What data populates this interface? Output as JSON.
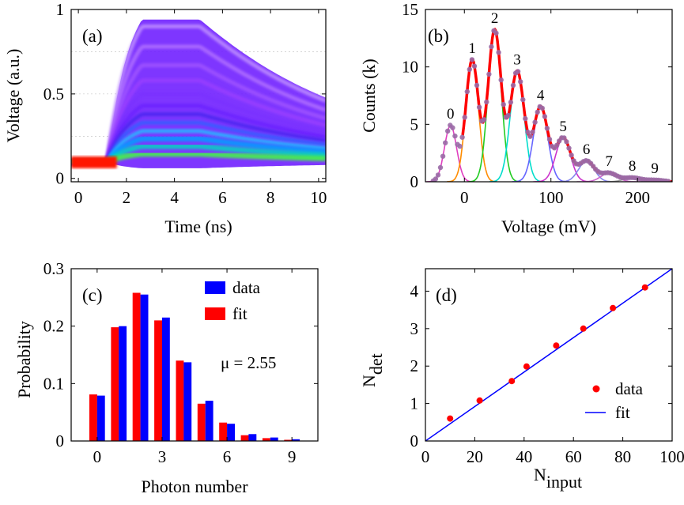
{
  "colors": {
    "blue": "#0000ff",
    "red": "#ff0000",
    "purple_point": "#9a6aa6"
  },
  "panels": {
    "a": {
      "label": "(a)",
      "xlabel": "Time (ns)",
      "ylabel": "Voltage (a.u.)",
      "xticks": [
        "0",
        "2",
        "4",
        "6",
        "8",
        "10"
      ],
      "yticks": [
        "0",
        "0.5",
        "1"
      ]
    },
    "b": {
      "label": "(b)",
      "xlabel": "Voltage (mV)",
      "ylabel": "Counts (k)",
      "xticks": [
        "0",
        "100",
        "200"
      ],
      "yticks": [
        "0",
        "5",
        "10",
        "15"
      ],
      "peak_labels": [
        "0",
        "1",
        "2",
        "3",
        "4",
        "5",
        "6",
        "7",
        "8",
        "9"
      ]
    },
    "c": {
      "label": "(c)",
      "xlabel": "Photon number",
      "ylabel": "Probability",
      "xticks": [
        "0",
        "3",
        "6",
        "9"
      ],
      "yticks": [
        "0",
        "0.1",
        "0.2",
        "0.3"
      ],
      "legend": [
        "data",
        "fit"
      ],
      "annotation": "μ = 2.55"
    },
    "d": {
      "label": "(d)",
      "xlabel_main": "N",
      "xlabel_sub": "input",
      "ylabel_main": "N",
      "ylabel_sub": "det",
      "xticks": [
        "0",
        "20",
        "40",
        "60",
        "80",
        "100"
      ],
      "yticks": [
        "0",
        "1",
        "2",
        "3",
        "4"
      ],
      "legend": [
        "data",
        "fit"
      ]
    }
  },
  "chart_data": [
    {
      "type": "heatmap",
      "panel": "a",
      "description_series": "persistence density of voltage traces vs time",
      "xlim": [
        -0.3,
        10.3
      ],
      "ylim": [
        -0.02,
        1.0
      ],
      "bands": [
        0.095,
        0.145,
        0.19,
        0.235,
        0.28,
        0.33,
        0.38,
        0.43,
        0.5,
        0.58,
        0.67,
        0.78,
        0.9
      ],
      "baseline": 0.095,
      "rise_start_ns": 1.2,
      "peak_time_ns": 3.7
    },
    {
      "type": "line",
      "panel": "b",
      "xlim": [
        -45,
        240
      ],
      "ylim": [
        0,
        15
      ],
      "peaks": [
        {
          "n": 0,
          "center": -16,
          "height": 4.9,
          "sigma": 7
        },
        {
          "n": 1,
          "center": 9,
          "height": 10.6,
          "sigma": 7.3
        },
        {
          "n": 2,
          "center": 35,
          "height": 13.2,
          "sigma": 7.6
        },
        {
          "n": 3,
          "center": 61,
          "height": 9.6,
          "sigma": 8
        },
        {
          "n": 4,
          "center": 88,
          "height": 6.5,
          "sigma": 8.3
        },
        {
          "n": 5,
          "center": 114,
          "height": 3.8,
          "sigma": 8.6
        },
        {
          "n": 6,
          "center": 141,
          "height": 1.8,
          "sigma": 9
        },
        {
          "n": 7,
          "center": 167,
          "height": 0.75,
          "sigma": 9.3
        },
        {
          "n": 8,
          "center": 194,
          "height": 0.35,
          "sigma": 9.6
        },
        {
          "n": 9,
          "center": 220,
          "height": 0.15,
          "sigma": 10
        }
      ],
      "peak_colors": [
        "#e040c0",
        "#ff8c00",
        "#22cc22",
        "#00ddcc",
        "#6666ff",
        "#cc33cc",
        "#8888ee",
        "#cc66cc",
        "#999999",
        "#cc99cc"
      ]
    },
    {
      "type": "bar",
      "panel": "c",
      "categories": [
        0,
        1,
        2,
        3,
        4,
        5,
        6,
        7,
        8,
        9
      ],
      "xlim": [
        -1.2,
        10.2
      ],
      "ylim": [
        0,
        0.3
      ],
      "series": [
        {
          "name": "data",
          "values": [
            0.079,
            0.2,
            0.255,
            0.215,
            0.137,
            0.07,
            0.03,
            0.012,
            0.006,
            0.003
          ]
        },
        {
          "name": "fit",
          "values": [
            0.081,
            0.198,
            0.258,
            0.21,
            0.14,
            0.065,
            0.032,
            0.01,
            0.005,
            0.002
          ]
        }
      ]
    },
    {
      "type": "scatter",
      "panel": "d",
      "xlim": [
        0,
        100
      ],
      "ylim": [
        0,
        4.6
      ],
      "series": [
        {
          "name": "data",
          "x": [
            10,
            22,
            35,
            41,
            53,
            64,
            76,
            89
          ],
          "y": [
            0.6,
            1.08,
            1.6,
            1.99,
            2.55,
            3.0,
            3.55,
            4.1
          ]
        },
        {
          "name": "fit",
          "x": [
            0,
            100
          ],
          "y": [
            0,
            4.6
          ]
        }
      ]
    }
  ]
}
